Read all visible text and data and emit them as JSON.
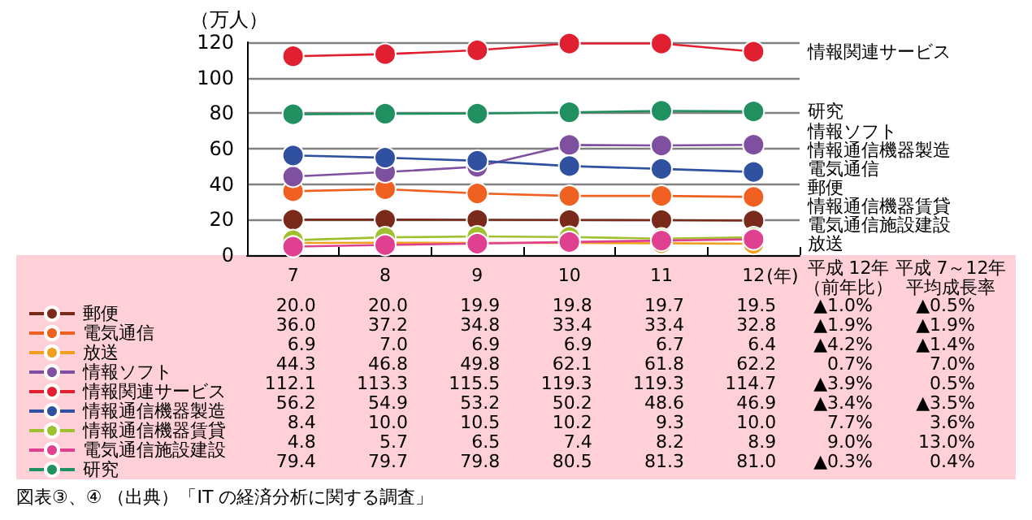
{
  "chart_data": {
    "type": "line",
    "ylabel": "（万人）",
    "xlabel": "(年)",
    "categories": [
      "7",
      "8",
      "9",
      "10",
      "11",
      "12"
    ],
    "ylim": [
      0,
      120
    ],
    "yticks": [
      0,
      20,
      40,
      60,
      80,
      100,
      120
    ],
    "grid": "y",
    "marker": "circle",
    "line_style": "solid",
    "legend": "bottom left",
    "series": [
      {
        "name": "郵便",
        "color": "#7a2a1a",
        "values": [
          20.0,
          20.0,
          19.9,
          19.8,
          19.7,
          19.5
        ],
        "value_labels": [
          "20.0",
          "20.0",
          "19.9",
          "19.8",
          "19.7",
          "19.5"
        ]
      },
      {
        "name": "電気通信",
        "color": "#f06020",
        "values": [
          36.0,
          37.2,
          34.8,
          33.4,
          33.4,
          32.8
        ],
        "value_labels": [
          "36.0",
          "37.2",
          "34.8",
          "33.4",
          "33.4",
          "32.8"
        ]
      },
      {
        "name": "放送",
        "color": "#f0a020",
        "values": [
          6.9,
          7.0,
          6.9,
          6.9,
          6.7,
          6.4
        ],
        "value_labels": [
          "6.9",
          "7.0",
          "6.9",
          "6.9",
          "6.7",
          "6.4"
        ]
      },
      {
        "name": "情報ソフト",
        "color": "#8050a0",
        "values": [
          44.3,
          46.8,
          49.8,
          62.1,
          61.8,
          62.2
        ],
        "value_labels": [
          "44.3",
          "46.8",
          "49.8",
          "62.1",
          "61.8",
          "62.2"
        ]
      },
      {
        "name": "情報関連サービス",
        "color": "#e02030",
        "values": [
          112.1,
          113.3,
          115.5,
          119.3,
          119.3,
          114.7
        ],
        "value_labels": [
          "112.1",
          "113.3",
          "115.5",
          "119.3",
          "119.3",
          "114.7"
        ]
      },
      {
        "name": "情報通信機器製造",
        "color": "#3050a0",
        "values": [
          56.2,
          54.9,
          53.2,
          50.2,
          48.6,
          46.9
        ],
        "value_labels": [
          "56.2",
          "54.9",
          "53.2",
          "50.2",
          "48.6",
          "46.9"
        ]
      },
      {
        "name": "情報通信機器賃貸",
        "color": "#a0c030",
        "values": [
          8.4,
          10.0,
          10.5,
          10.2,
          9.3,
          10.0
        ],
        "value_labels": [
          "8.4",
          "10.0",
          "10.5",
          "10.2",
          "9.3",
          "10.0"
        ]
      },
      {
        "name": "電気通信施設建設",
        "color": "#e04090",
        "values": [
          4.8,
          5.7,
          6.5,
          7.4,
          8.2,
          8.9
        ],
        "value_labels": [
          "4.8",
          "5.7",
          "6.5",
          "7.4",
          "8.2",
          "8.9"
        ]
      },
      {
        "name": "研究",
        "color": "#209060",
        "values": [
          79.4,
          79.7,
          79.8,
          80.5,
          81.3,
          81.0
        ],
        "value_labels": [
          "79.4",
          "79.7",
          "79.8",
          "80.5",
          "81.3",
          "81.0"
        ]
      }
    ],
    "annotations": [
      "図表③、④ （出典）「IT の経済分析に関する調査」",
      "平成 12年",
      "（前年比）",
      "平成 7～12年",
      "平均成長率",
      "▲1.0%",
      "▲0.5%",
      "▲1.9%",
      "▲1.9%",
      "▲4.2%",
      "▲1.4%",
      "0.7%",
      "7.0%",
      "▲3.9%",
      "0.5%",
      "▲3.4%",
      "▲3.5%",
      "7.7%",
      "3.6%",
      "9.0%",
      "13.0%",
      "▲0.3%",
      "0.4%"
    ]
  }
}
